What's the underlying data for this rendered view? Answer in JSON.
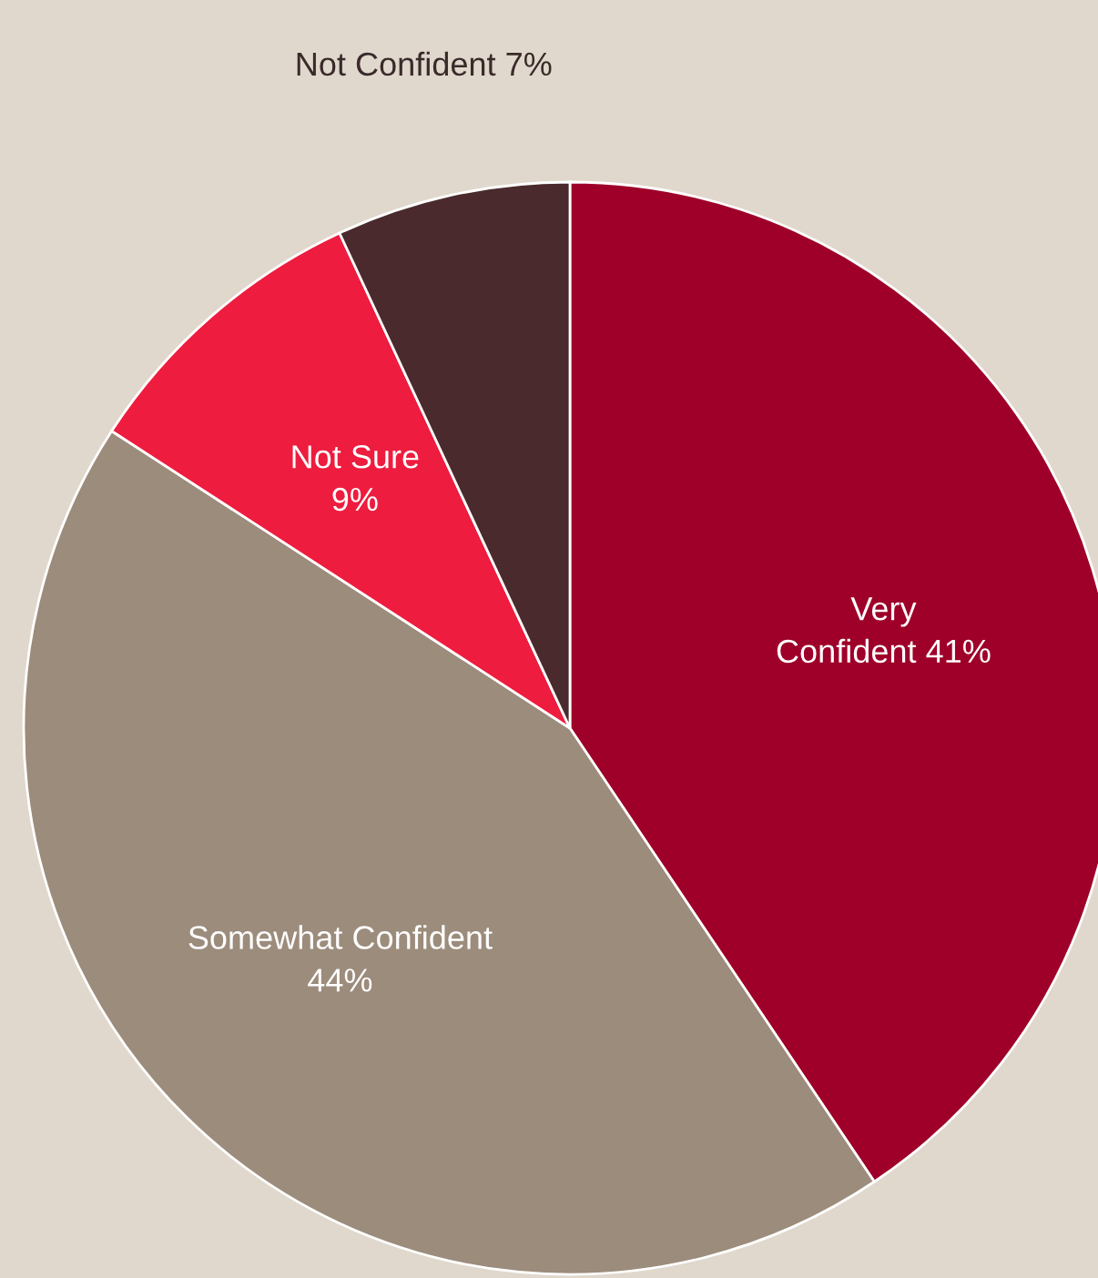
{
  "chart_data": {
    "type": "pie",
    "categories": [
      "Very\nConfident",
      "Somewhat Confident",
      "Not Sure",
      "Not Confident"
    ],
    "values": [
      41,
      44,
      9,
      7
    ],
    "value_labels": [
      "41%",
      "44%",
      "9%",
      "7%"
    ],
    "colors": [
      "#9e0029",
      "#9c8c7c",
      "#ee1c3e",
      "#4a2a2c"
    ],
    "legend": false
  }
}
